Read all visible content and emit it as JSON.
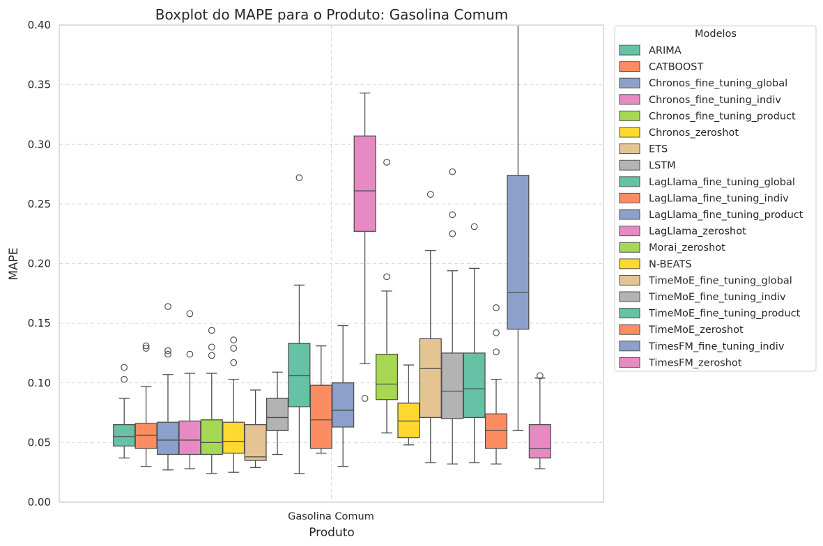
{
  "chart_data": {
    "type": "boxplot",
    "title": "Boxplot do MAPE para o Produto: Gasolina Comum",
    "xlabel": "Produto",
    "ylabel": "MAPE",
    "categories": [
      "Gasolina Comum"
    ],
    "ylim": [
      0.0,
      0.4
    ],
    "yticks": [
      0.0,
      0.05,
      0.1,
      0.15,
      0.2,
      0.25,
      0.3,
      0.35,
      0.4
    ],
    "ytick_labels": [
      "0.00",
      "0.05",
      "0.10",
      "0.15",
      "0.20",
      "0.25",
      "0.30",
      "0.35",
      "0.40"
    ],
    "grid": true,
    "legend": {
      "title": "Modelos",
      "placement": "outside-right"
    },
    "series": [
      {
        "name": "ARIMA",
        "color": "#66c2a5",
        "whislo": 0.037,
        "q1": 0.047,
        "med": 0.055,
        "q3": 0.065,
        "whishi": 0.087,
        "fliers": [
          0.113,
          0.103
        ]
      },
      {
        "name": "CATBOOST",
        "color": "#fc8d62",
        "whislo": 0.03,
        "q1": 0.045,
        "med": 0.056,
        "q3": 0.066,
        "whishi": 0.097,
        "fliers": [
          0.131,
          0.129
        ]
      },
      {
        "name": "Chronos_fine_tuning_global",
        "color": "#8da0cb",
        "whislo": 0.027,
        "q1": 0.04,
        "med": 0.052,
        "q3": 0.067,
        "whishi": 0.107,
        "fliers": [
          0.164,
          0.127,
          0.124
        ]
      },
      {
        "name": "Chronos_fine_tuning_indiv",
        "color": "#e78ac3",
        "whislo": 0.028,
        "q1": 0.04,
        "med": 0.052,
        "q3": 0.068,
        "whishi": 0.108,
        "fliers": [
          0.158,
          0.124
        ]
      },
      {
        "name": "Chronos_fine_tuning_product",
        "color": "#a6d854",
        "whislo": 0.024,
        "q1": 0.04,
        "med": 0.05,
        "q3": 0.069,
        "whishi": 0.108,
        "fliers": [
          0.144,
          0.13,
          0.123
        ]
      },
      {
        "name": "Chronos_zeroshot",
        "color": "#ffd92f",
        "whislo": 0.025,
        "q1": 0.041,
        "med": 0.051,
        "q3": 0.067,
        "whishi": 0.103,
        "fliers": [
          0.136,
          0.129,
          0.117
        ]
      },
      {
        "name": "ETS",
        "color": "#e5c494",
        "whislo": 0.029,
        "q1": 0.035,
        "med": 0.038,
        "q3": 0.065,
        "whishi": 0.094,
        "fliers": []
      },
      {
        "name": "LSTM",
        "color": "#b3b3b3",
        "whislo": 0.04,
        "q1": 0.06,
        "med": 0.071,
        "q3": 0.087,
        "whishi": 0.109,
        "fliers": []
      },
      {
        "name": "LagLlama_fine_tuning_global",
        "color": "#66c2a5",
        "whislo": 0.024,
        "q1": 0.08,
        "med": 0.106,
        "q3": 0.133,
        "whishi": 0.182,
        "fliers": [
          0.272
        ]
      },
      {
        "name": "LagLlama_fine_tuning_indiv",
        "color": "#fc8d62",
        "whislo": 0.041,
        "q1": 0.045,
        "med": 0.069,
        "q3": 0.098,
        "whishi": 0.131,
        "fliers": []
      },
      {
        "name": "LagLlama_fine_tuning_product",
        "color": "#8da0cb",
        "whislo": 0.03,
        "q1": 0.063,
        "med": 0.077,
        "q3": 0.1,
        "whishi": 0.148,
        "fliers": []
      },
      {
        "name": "LagLlama_zeroshot",
        "color": "#e78ac3",
        "whislo": 0.116,
        "q1": 0.227,
        "med": 0.261,
        "q3": 0.307,
        "whishi": 0.343,
        "fliers": [
          0.087
        ]
      },
      {
        "name": "Morai_zeroshot",
        "color": "#a6d854",
        "whislo": 0.058,
        "q1": 0.086,
        "med": 0.099,
        "q3": 0.124,
        "whishi": 0.177,
        "fliers": [
          0.285,
          0.189
        ]
      },
      {
        "name": "N-BEATS",
        "color": "#ffd92f",
        "whislo": 0.048,
        "q1": 0.054,
        "med": 0.068,
        "q3": 0.083,
        "whishi": 0.115,
        "fliers": []
      },
      {
        "name": "TimeMoE_fine_tuning_global",
        "color": "#e5c494",
        "whislo": 0.033,
        "q1": 0.071,
        "med": 0.112,
        "q3": 0.137,
        "whishi": 0.211,
        "fliers": [
          0.258
        ]
      },
      {
        "name": "TimeMoE_fine_tuning_indiv",
        "color": "#b3b3b3",
        "whislo": 0.032,
        "q1": 0.07,
        "med": 0.093,
        "q3": 0.125,
        "whishi": 0.194,
        "fliers": [
          0.277,
          0.241,
          0.225
        ]
      },
      {
        "name": "TimeMoE_fine_tuning_product",
        "color": "#66c2a5",
        "whislo": 0.033,
        "q1": 0.071,
        "med": 0.095,
        "q3": 0.125,
        "whishi": 0.196,
        "fliers": [
          0.231
        ]
      },
      {
        "name": "TimeMoE_zeroshot",
        "color": "#fc8d62",
        "whislo": 0.032,
        "q1": 0.045,
        "med": 0.06,
        "q3": 0.074,
        "whishi": 0.103,
        "fliers": [
          0.163,
          0.142,
          0.126
        ]
      },
      {
        "name": "TimesFM_fine_tuning_indiv",
        "color": "#8da0cb",
        "whislo": 0.06,
        "q1": 0.145,
        "med": 0.176,
        "q3": 0.274,
        "whishi": 0.4,
        "fliers": []
      },
      {
        "name": "TimesFM_zeroshot",
        "color": "#e78ac3",
        "whislo": 0.028,
        "q1": 0.037,
        "med": 0.045,
        "q3": 0.065,
        "whishi": 0.104,
        "fliers": [
          0.106
        ]
      }
    ]
  }
}
